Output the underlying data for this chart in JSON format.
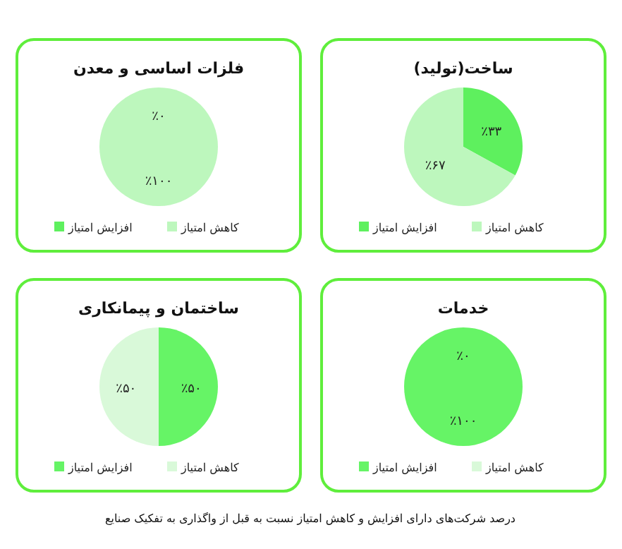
{
  "chart_data": [
    {
      "type": "pie",
      "title": "ساخت(تولید)",
      "categories": [
        "افزایش امتیاز",
        "کاهش امتیاز"
      ],
      "values": [
        33,
        67
      ],
      "colors": [
        "#5ef05e",
        "#bdf7bd"
      ],
      "value_labels": [
        "٪۳۳",
        "٪۶۷"
      ],
      "legend": "bottom"
    },
    {
      "type": "pie",
      "title": "فلزات اساسی و معدن",
      "categories": [
        "افزایش امتیاز",
        "کاهش امتیاز"
      ],
      "values": [
        0,
        100
      ],
      "colors": [
        "#5ef05e",
        "#bdf7bd"
      ],
      "value_labels": [
        "٪۰",
        "٪۱۰۰"
      ],
      "legend": "bottom"
    },
    {
      "type": "pie",
      "title": "خدمات",
      "categories": [
        "افزایش امتیاز",
        "کاهش امتیاز"
      ],
      "values": [
        100,
        0
      ],
      "colors": [
        "#66f466",
        "#d9f9d9"
      ],
      "value_labels": [
        "٪۱۰۰",
        "٪۰"
      ],
      "legend": "bottom"
    },
    {
      "type": "pie",
      "title": "ساختمان و پیمانکاری",
      "categories": [
        "افزایش امتیاز",
        "کاهش امتیاز"
      ],
      "values": [
        50,
        50
      ],
      "colors": [
        "#66f466",
        "#d9f9d9"
      ],
      "value_labels": [
        "٪۵۰",
        "٪۵۰"
      ],
      "legend": "bottom",
      "annotations": [
        "درصد شرکت‌های دارای افزایش و کاهش امتیاز نسبت به قبل از واگذاری به تفکیک صنایع"
      ]
    }
  ]
}
